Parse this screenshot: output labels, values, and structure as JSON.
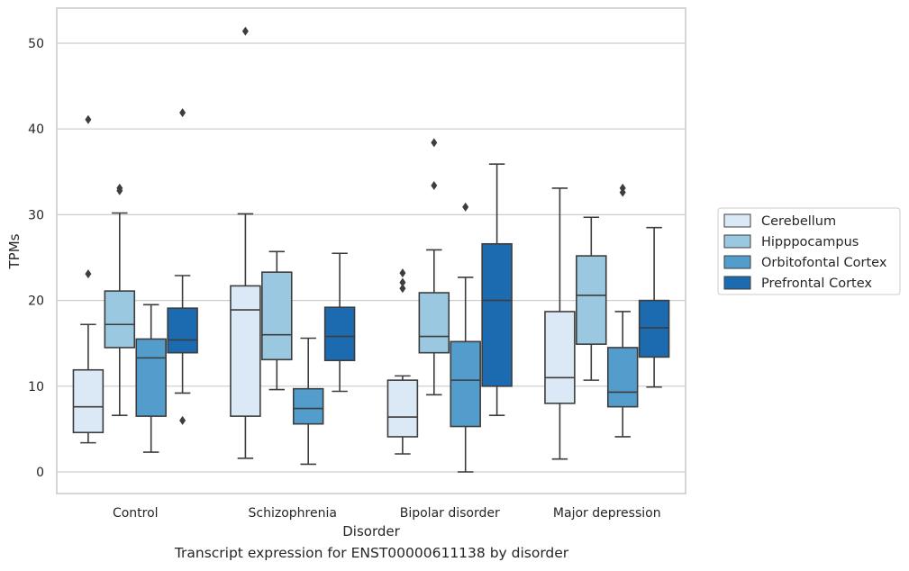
{
  "caption": "Transcript expression for ENST00000611138 by disorder",
  "chart_data": {
    "type": "box",
    "title": "",
    "xlabel": "Disorder",
    "ylabel": "TPMs",
    "ylim": [
      -2.5,
      54
    ],
    "yticks": [
      0,
      10,
      20,
      30,
      40,
      50
    ],
    "grid": "horizontal",
    "legend_position": "right",
    "categories": [
      "Control",
      "Schizophrenia",
      "Bipolar disorder",
      "Major depression"
    ],
    "series": [
      {
        "name": "Cerebellum",
        "color": "#dbe9f6",
        "boxes": [
          {
            "whisker_low": 3.4,
            "q1": 4.6,
            "median": 7.6,
            "q3": 11.9,
            "whisker_high": 17.2,
            "outliers": [
              23.1,
              41.1
            ]
          },
          {
            "whisker_low": 1.6,
            "q1": 6.5,
            "median": 18.9,
            "q3": 21.7,
            "whisker_high": 30.1,
            "outliers": [
              51.4
            ]
          },
          {
            "whisker_low": 2.1,
            "q1": 4.1,
            "median": 6.4,
            "q3": 10.7,
            "whisker_high": 11.2,
            "outliers": [
              21.4,
              22.1,
              23.2
            ]
          },
          {
            "whisker_low": 1.5,
            "q1": 8.0,
            "median": 11.0,
            "q3": 18.7,
            "whisker_high": 33.1,
            "outliers": []
          }
        ]
      },
      {
        "name": "Hipppocampus",
        "color": "#9ac8e0",
        "boxes": [
          {
            "whisker_low": 6.6,
            "q1": 14.5,
            "median": 17.2,
            "q3": 21.1,
            "whisker_high": 30.2,
            "outliers": [
              32.8,
              33.1
            ]
          },
          {
            "whisker_low": 9.6,
            "q1": 13.1,
            "median": 16.0,
            "q3": 23.3,
            "whisker_high": 25.7,
            "outliers": []
          },
          {
            "whisker_low": 9.0,
            "q1": 13.9,
            "median": 15.8,
            "q3": 20.9,
            "whisker_high": 25.9,
            "outliers": [
              33.4,
              38.4
            ]
          },
          {
            "whisker_low": 10.7,
            "q1": 14.9,
            "median": 20.6,
            "q3": 25.2,
            "whisker_high": 29.7,
            "outliers": []
          }
        ]
      },
      {
        "name": "Orbitofontal Cortex",
        "color": "#529dcc",
        "boxes": [
          {
            "whisker_low": 2.3,
            "q1": 6.5,
            "median": 13.3,
            "q3": 15.5,
            "whisker_high": 19.5,
            "outliers": []
          },
          {
            "whisker_low": 0.9,
            "q1": 5.6,
            "median": 7.4,
            "q3": 9.7,
            "whisker_high": 15.6,
            "outliers": []
          },
          {
            "whisker_low": 0.0,
            "q1": 5.3,
            "median": 10.7,
            "q3": 15.2,
            "whisker_high": 22.7,
            "outliers": [
              30.9
            ]
          },
          {
            "whisker_low": 4.1,
            "q1": 7.6,
            "median": 9.3,
            "q3": 14.5,
            "whisker_high": 18.7,
            "outliers": [
              32.6,
              33.1
            ]
          }
        ]
      },
      {
        "name": "Prefrontal Cortex",
        "color": "#1c6aaf",
        "boxes": [
          {
            "whisker_low": 9.2,
            "q1": 13.9,
            "median": 15.4,
            "q3": 19.1,
            "whisker_high": 22.9,
            "outliers": [
              6.0,
              41.9
            ]
          },
          {
            "whisker_low": 9.4,
            "q1": 13.0,
            "median": 15.8,
            "q3": 19.2,
            "whisker_high": 25.5,
            "outliers": []
          },
          {
            "whisker_low": 6.6,
            "q1": 10.0,
            "median": 20.0,
            "q3": 26.6,
            "whisker_high": 35.9,
            "outliers": []
          },
          {
            "whisker_low": 9.9,
            "q1": 13.4,
            "median": 16.8,
            "q3": 20.0,
            "whisker_high": 28.5,
            "outliers": []
          }
        ]
      }
    ]
  }
}
